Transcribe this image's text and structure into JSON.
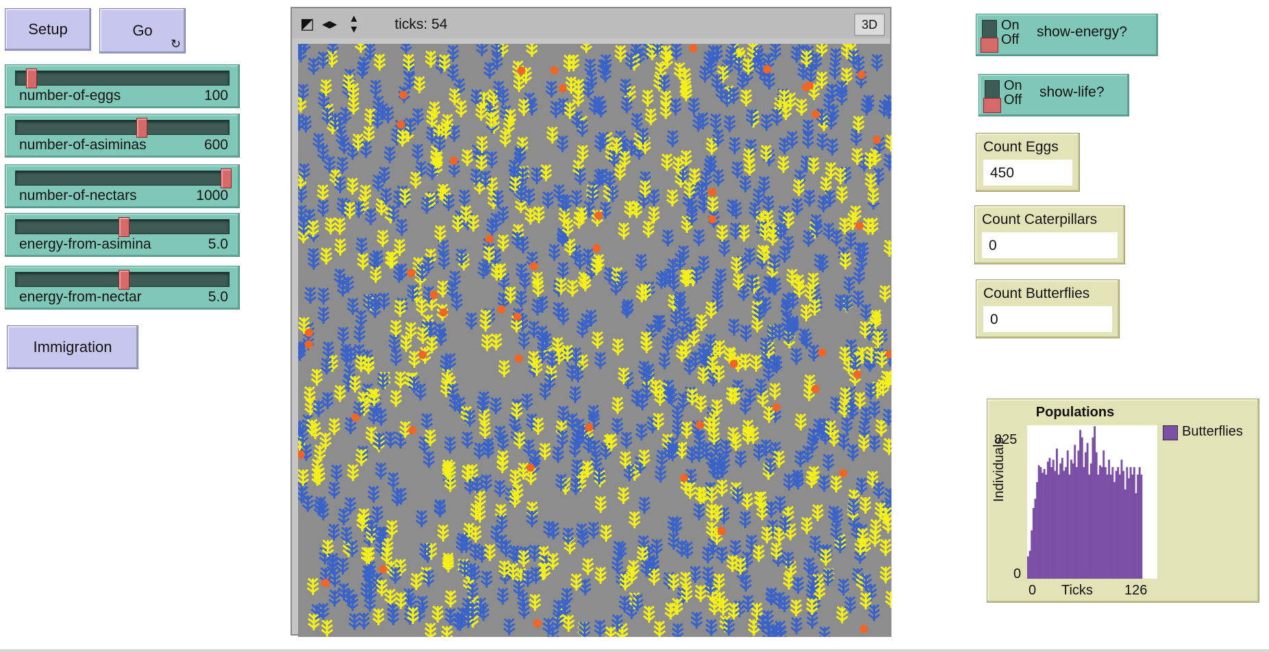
{
  "buttons": {
    "setup": "Setup",
    "go": "Go",
    "immigration": "Immigration"
  },
  "sliders": [
    {
      "name": "number-of-eggs",
      "value": "100",
      "fraction": 0.05
    },
    {
      "name": "number-of-asiminas",
      "value": "600",
      "fraction": 0.59
    },
    {
      "name": "number-of-nectars",
      "value": "1000",
      "fraction": 1.0
    },
    {
      "name": "energy-from-asimina",
      "value": "5.0",
      "fraction": 0.5
    },
    {
      "name": "energy-from-nectar",
      "value": "5.0",
      "fraction": 0.5
    }
  ],
  "view": {
    "ticks_label": "ticks: 54",
    "btn_3d": "3D",
    "background_color": "#8d8d8d",
    "plant_colors": {
      "asimina": "#3a63c9",
      "nectar": "#f4f01a",
      "egg": "#f26522"
    }
  },
  "switches": [
    {
      "on": "On",
      "off": "Off",
      "label": "show-energy?",
      "state": "off"
    },
    {
      "on": "On",
      "off": "Off",
      "label": "show-life?",
      "state": "off"
    }
  ],
  "monitors": [
    {
      "label": "Count Eggs",
      "value": "450"
    },
    {
      "label": "Count Caterpillars",
      "value": "0"
    },
    {
      "label": "Count Butterflies",
      "value": "0"
    }
  ],
  "plot": {
    "title": "Populations",
    "ymax": "825",
    "ymin": "0",
    "ylabel": "Individuals",
    "xmin": "0",
    "xlabel": "Ticks",
    "xmax": "126",
    "legend": "Butterflies",
    "color": "#7b4fa6"
  },
  "chart_data": {
    "type": "bar",
    "title": "Populations",
    "xlabel": "Ticks",
    "ylabel": "Individuals",
    "xlim": [
      0,
      126
    ],
    "ylim": [
      0,
      825
    ],
    "series": [
      {
        "name": "Butterflies",
        "values": [
          120,
          150,
          260,
          380,
          430,
          520,
          610,
          600,
          570,
          590,
          560,
          630,
          650,
          600,
          640,
          580,
          700,
          560,
          620,
          650,
          580,
          600,
          690,
          560,
          640,
          620,
          720,
          600,
          690,
          800,
          760,
          600,
          680,
          730,
          560,
          620,
          760,
          820,
          680,
          560,
          610,
          600,
          690,
          600,
          560,
          640,
          560,
          600,
          520,
          580,
          600,
          560,
          640,
          580,
          480,
          600,
          540,
          600,
          560,
          600,
          460,
          560,
          600,
          560
        ]
      }
    ]
  }
}
